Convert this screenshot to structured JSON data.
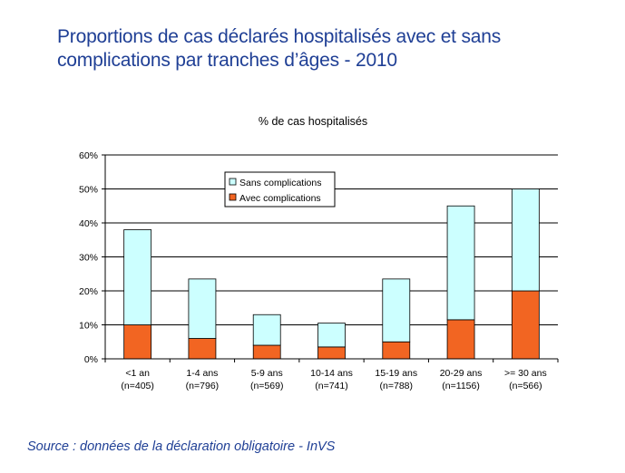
{
  "slide": {
    "title_line1": "Proportions de cas déclarés hospitalisés avec et sans",
    "title_line2": "complications par tranches d’âges - 2010",
    "source": "Source : données de la déclaration obligatoire - InVS"
  },
  "colors": {
    "title": "#1f3f95",
    "sans": "#ccffff",
    "avec": "#f26522",
    "bar_border": "#000000",
    "grid": "#000000"
  },
  "chart_data": {
    "type": "bar",
    "stacked": true,
    "title": "% de cas hospitalisés",
    "xlabel": "",
    "ylabel": "",
    "ylim": [
      0,
      60
    ],
    "yticks": [
      0,
      10,
      20,
      30,
      40,
      50,
      60
    ],
    "ytick_labels": [
      "0%",
      "10%",
      "20%",
      "30%",
      "40%",
      "50%",
      "60%"
    ],
    "grid": true,
    "legend_position": "top-center",
    "categories": [
      [
        "<1 an",
        "(n=405)"
      ],
      [
        "1-4 ans",
        "(n=796)"
      ],
      [
        "5-9 ans",
        "(n=569)"
      ],
      [
        "10-14 ans",
        "(n=741)"
      ],
      [
        "15-19 ans",
        "(n=788)"
      ],
      [
        "20-29 ans",
        "(n=1156)"
      ],
      [
        ">= 30 ans",
        "(n=566)"
      ]
    ],
    "series": [
      {
        "name": "Avec complications",
        "key": "avec",
        "values": [
          10,
          6,
          4,
          3.5,
          5,
          11.5,
          20
        ]
      },
      {
        "name": "Sans complications",
        "key": "sans",
        "values": [
          28,
          17.5,
          9,
          7,
          18.5,
          33.5,
          30
        ]
      }
    ],
    "legend": [
      {
        "label": "Sans complications",
        "key": "sans"
      },
      {
        "label": "Avec complications",
        "key": "avec"
      }
    ]
  }
}
